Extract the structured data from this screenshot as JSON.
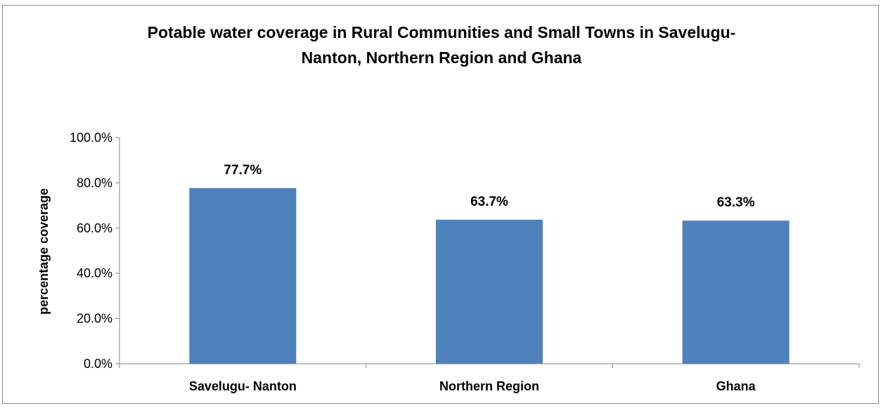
{
  "chart_data": {
    "type": "bar",
    "title_lines": [
      "Potable water coverage in Rural Communities and Small Towns in Savelugu-",
      "Nanton, Northern Region and Ghana"
    ],
    "xlabel": "",
    "ylabel": "percentage coverage",
    "categories": [
      "Savelugu- Nanton",
      "Northern Region",
      "Ghana"
    ],
    "values": [
      77.7,
      63.7,
      63.3
    ],
    "data_labels": [
      "77.7%",
      "63.7%",
      "63.3%"
    ],
    "ylim": [
      0,
      100
    ],
    "yticks": [
      0,
      20,
      40,
      60,
      80,
      100
    ],
    "ytick_labels": [
      "0.0%",
      "20.0%",
      "40.0%",
      "60.0%",
      "80.0%",
      "100.0%"
    ],
    "grid": false,
    "legend": "none",
    "bar_color": "#4f81bd"
  }
}
